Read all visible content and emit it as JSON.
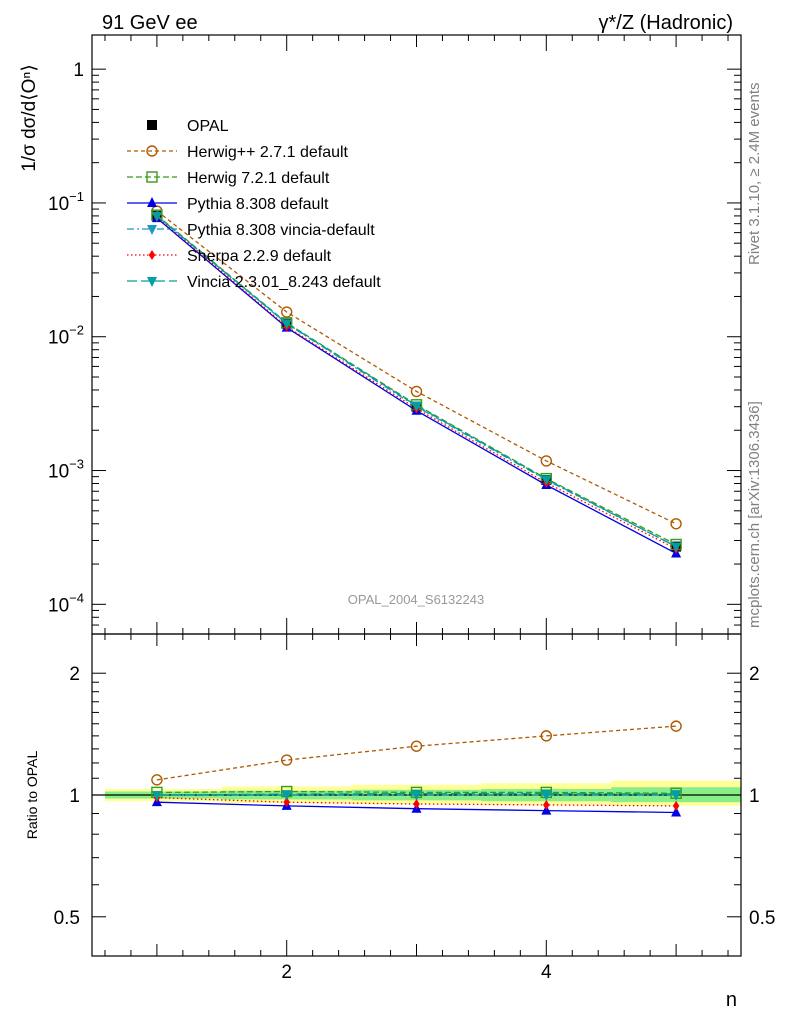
{
  "header": {
    "left": "91 GeV ee",
    "right": "γ*/Z (Hadronic)"
  },
  "side_text": {
    "rivet": "Rivet 3.1.10, ≥ 2.4M events",
    "mcplots": "mcplots.cern.ch [arXiv:1306.3436]"
  },
  "chart_data": [
    {
      "type": "line",
      "ylabel": "1/σ dσ/d⟨Oⁿ⟩",
      "yscale": "log",
      "ylim": [
        6e-05,
        1.8
      ],
      "xlim": [
        0.5,
        5.5
      ],
      "watermark": "OPAL_2004_S6132243",
      "y_tick_labels": [
        {
          "v": 1,
          "base": "1",
          "exp": ""
        },
        {
          "v": 0.1,
          "base": "10",
          "exp": "−1"
        },
        {
          "v": 0.01,
          "base": "10",
          "exp": "−2"
        },
        {
          "v": 0.001,
          "base": "10",
          "exp": "−3"
        },
        {
          "v": 0.0001,
          "base": "10",
          "exp": "−4"
        }
      ],
      "legend_position": "top-left",
      "x": [
        1,
        2,
        3,
        4,
        5
      ],
      "series": [
        {
          "name": "OPAL",
          "marker": "square-filled",
          "color": "#000000",
          "dash": "",
          "values": [
            0.08,
            0.0125,
            0.003,
            0.00085,
            0.00027
          ]
        },
        {
          "name": "Herwig++ 2.7.1 default",
          "marker": "circle-open",
          "color": "#b05a00",
          "dash": "4,3",
          "values": [
            0.087,
            0.0153,
            0.0039,
            0.00118,
            0.0004
          ]
        },
        {
          "name": "Herwig 7.2.1 default",
          "marker": "square-open",
          "color": "#3a9a1a",
          "dash": "6,3",
          "values": [
            0.081,
            0.0127,
            0.0031,
            0.00087,
            0.00028
          ]
        },
        {
          "name": "Pythia 8.308 default",
          "marker": "triangle-up",
          "color": "#0000e6",
          "dash": "",
          "values": [
            0.077,
            0.0117,
            0.0028,
            0.00078,
            0.00024
          ]
        },
        {
          "name": "Pythia 8.308 vincia-default",
          "marker": "triangle-down",
          "color": "#1a9ac0",
          "dash": "7,3,2,3",
          "values": [
            0.08,
            0.0125,
            0.003,
            0.00085,
            0.00027
          ]
        },
        {
          "name": "Sherpa 2.2.9 default",
          "marker": "diamond",
          "color": "#ff0000",
          "dash": "1.5,2.5",
          "values": [
            0.079,
            0.0119,
            0.0029,
            0.00081,
            0.00026
          ]
        },
        {
          "name": "Vincia 2.3.01_8.243 default",
          "marker": "triangle-down",
          "color": "#00a0a0",
          "dash": "10,4",
          "values": [
            0.08,
            0.0126,
            0.00305,
            0.00086,
            0.00027
          ]
        }
      ]
    },
    {
      "type": "line",
      "ylabel": "Ratio to OPAL",
      "xlabel": "n",
      "yscale": "log",
      "ylim": [
        0.4,
        2.5
      ],
      "xlim": [
        0.5,
        5.5
      ],
      "x_ticks": [
        2,
        4
      ],
      "y_ticks": [
        0.5,
        1,
        2
      ],
      "band": {
        "x": [
          0.6,
          1.5,
          2.5,
          3.5,
          4.5,
          5.5
        ],
        "outer": [
          [
            0.965,
            1.035
          ],
          [
            0.955,
            1.05
          ],
          [
            0.95,
            1.06
          ],
          [
            0.945,
            1.07
          ],
          [
            0.94,
            1.085
          ]
        ],
        "inner": [
          [
            0.98,
            1.02
          ],
          [
            0.975,
            1.025
          ],
          [
            0.97,
            1.03
          ],
          [
            0.965,
            1.035
          ],
          [
            0.96,
            1.045
          ]
        ],
        "outer_color": "#ffff99",
        "inner_color": "#88ee88"
      },
      "x": [
        1,
        2,
        3,
        4,
        5
      ],
      "series": [
        {
          "name": "Herwig++ 2.7.1 default",
          "values": [
            1.09,
            1.22,
            1.32,
            1.4,
            1.48
          ]
        },
        {
          "name": "Herwig 7.2.1 default",
          "values": [
            1.015,
            1.02,
            1.015,
            1.015,
            1.01
          ]
        },
        {
          "name": "Pythia 8.308 default",
          "values": [
            0.96,
            0.94,
            0.925,
            0.915,
            0.905
          ]
        },
        {
          "name": "Pythia 8.308 vincia-default",
          "values": [
            1.0,
            1.0,
            1.0,
            1.0,
            1.0
          ]
        },
        {
          "name": "Sherpa 2.2.9 default",
          "values": [
            0.985,
            0.96,
            0.95,
            0.945,
            0.94
          ]
        },
        {
          "name": "Vincia 2.3.01_8.243 default",
          "values": [
            1.0,
            1.005,
            1.008,
            1.008,
            1.005
          ]
        }
      ]
    }
  ]
}
